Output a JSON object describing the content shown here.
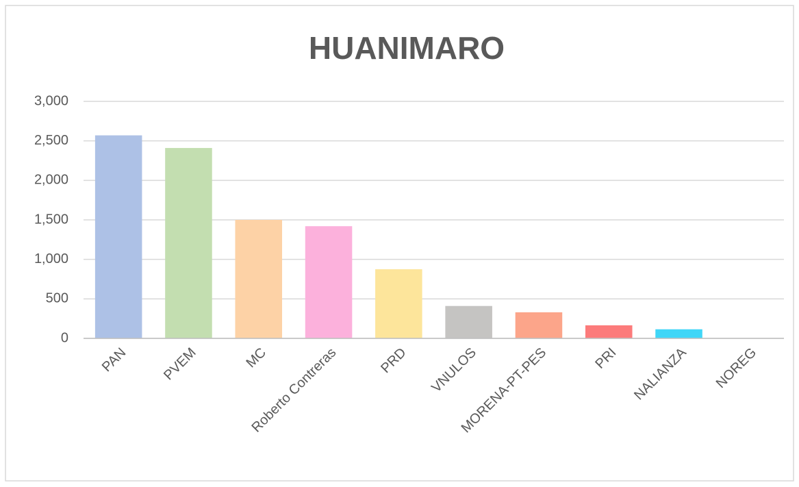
{
  "chart_data": {
    "type": "bar",
    "title": "HUANIMARO",
    "categories": [
      "PAN",
      "PVEM",
      "MC",
      "Roberto Contreras",
      "PRD",
      "VNULOS",
      "MORENA-PT-PES",
      "PRI",
      "NALIANZA",
      "NOREG"
    ],
    "values": [
      2570,
      2410,
      1500,
      1420,
      875,
      410,
      330,
      165,
      115,
      0
    ],
    "colors": [
      "#adc1e6",
      "#c3deb0",
      "#fdd2a6",
      "#fcb1dc",
      "#fde59b",
      "#c5c4c2",
      "#fca58a",
      "#fc7b7b",
      "#40d6f7",
      "#8aa1c9"
    ],
    "ylim": [
      0,
      3000
    ],
    "yticks": [
      0,
      500,
      {
        "value": 1000,
        "label": "1,000"
      },
      {
        "value": 1500,
        "label": "1,500"
      },
      {
        "value": 2000,
        "label": "2,000"
      },
      {
        "value": 2500,
        "label": "2,500"
      },
      {
        "value": 3000,
        "label": "3,000"
      }
    ],
    "grid": true
  }
}
